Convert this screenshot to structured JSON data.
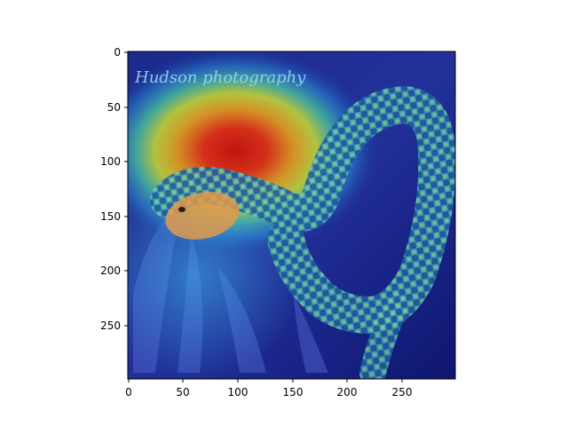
{
  "figure": {
    "type": "heatmap",
    "watermark": "Hudson photography",
    "colormap": "jet",
    "x_ticks": [
      "0",
      "50",
      "100",
      "150",
      "200",
      "250"
    ],
    "y_ticks": [
      "0",
      "50",
      "100",
      "150",
      "200",
      "250"
    ]
  },
  "chart_data": {
    "type": "heatmap",
    "title": "",
    "xlabel": "",
    "ylabel": "",
    "xlim": [
      0,
      299
    ],
    "ylim": [
      299,
      0
    ],
    "x_ticks": [
      0,
      50,
      100,
      150,
      200,
      250
    ],
    "y_ticks": [
      0,
      50,
      100,
      150,
      200,
      250
    ],
    "colormap": "jet",
    "grid": false,
    "hotspot": {
      "x": 120,
      "y": 100,
      "intensity": 1.0
    }
  }
}
